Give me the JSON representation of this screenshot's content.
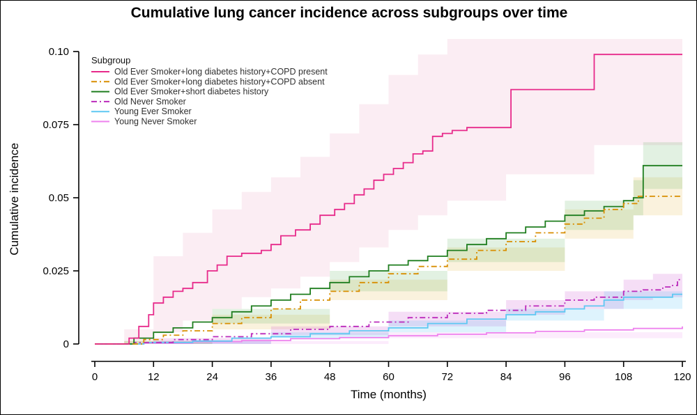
{
  "figure": {
    "background": "#ffffff",
    "border_color": "#000000",
    "axis_color": "#000000",
    "tick_label_color": "#000000",
    "legend_text_color": "#303030"
  },
  "chart_data": {
    "type": "line",
    "subtype": "step-cumulative-incidence",
    "title": "Cumulative lung cancer incidence across subgroups over time",
    "xlabel": "Time (months)",
    "ylabel": "Cumulative incidence",
    "xlim": [
      0,
      120
    ],
    "ylim": [
      0,
      0.1
    ],
    "xticks": [
      0,
      12,
      24,
      36,
      48,
      60,
      72,
      84,
      96,
      108,
      120
    ],
    "yticks": [
      0,
      0.025,
      0.05,
      0.075,
      0.1
    ],
    "ytick_labels": [
      "0",
      "0.025",
      "0.05",
      "0.075",
      "0.10"
    ],
    "grid": false,
    "legend": {
      "title": "Subgroup",
      "position": "top-left"
    },
    "series": [
      {
        "name": "Old Ever Smoker+long diabetes history+COPD present",
        "color": "#e7298a",
        "style": "solid",
        "band_color": "rgba(226,110,160,0.12)",
        "points": [
          [
            0,
            0
          ],
          [
            6,
            0
          ],
          [
            7,
            0.002
          ],
          [
            9,
            0.006
          ],
          [
            11,
            0.01
          ],
          [
            12,
            0.014
          ],
          [
            14,
            0.016
          ],
          [
            16,
            0.018
          ],
          [
            18,
            0.019
          ],
          [
            20,
            0.021
          ],
          [
            23,
            0.025
          ],
          [
            25,
            0.027
          ],
          [
            27,
            0.03
          ],
          [
            30,
            0.031
          ],
          [
            34,
            0.032
          ],
          [
            36,
            0.034
          ],
          [
            38,
            0.037
          ],
          [
            41,
            0.039
          ],
          [
            44,
            0.041
          ],
          [
            46,
            0.044
          ],
          [
            49,
            0.046
          ],
          [
            51,
            0.048
          ],
          [
            53,
            0.051
          ],
          [
            55,
            0.053
          ],
          [
            57,
            0.056
          ],
          [
            59,
            0.058
          ],
          [
            61,
            0.06
          ],
          [
            63,
            0.062
          ],
          [
            65,
            0.065
          ],
          [
            67,
            0.066
          ],
          [
            69,
            0.071
          ],
          [
            71,
            0.072
          ],
          [
            73,
            0.073
          ],
          [
            76,
            0.074
          ],
          [
            85,
            0.087
          ],
          [
            102,
            0.099
          ],
          [
            120,
            0.099
          ]
        ],
        "band": [
          [
            6,
            0,
            0.005
          ],
          [
            12,
            0.004,
            0.03
          ],
          [
            18,
            0.008,
            0.038
          ],
          [
            24,
            0.012,
            0.046
          ],
          [
            30,
            0.016,
            0.052
          ],
          [
            36,
            0.019,
            0.057
          ],
          [
            42,
            0.023,
            0.064
          ],
          [
            48,
            0.028,
            0.072
          ],
          [
            54,
            0.033,
            0.082
          ],
          [
            60,
            0.039,
            0.092
          ],
          [
            66,
            0.044,
            0.099
          ],
          [
            72,
            0.049,
            0.106
          ],
          [
            84,
            0.058,
            0.118
          ],
          [
            102,
            0.068,
            0.13
          ],
          [
            120,
            0.068,
            0.13
          ]
        ]
      },
      {
        "name": "Old Ever Smoker+long diabetes history+COPD absent",
        "color": "#d88e00",
        "style": "dashdot",
        "band_color": "rgba(220,170,30,0.15)",
        "points": [
          [
            0,
            0
          ],
          [
            6,
            0
          ],
          [
            10,
            0.0015
          ],
          [
            14,
            0.003
          ],
          [
            18,
            0.0045
          ],
          [
            24,
            0.007
          ],
          [
            30,
            0.009
          ],
          [
            36,
            0.012
          ],
          [
            42,
            0.015
          ],
          [
            48,
            0.018
          ],
          [
            54,
            0.021
          ],
          [
            60,
            0.024
          ],
          [
            66,
            0.0265
          ],
          [
            72,
            0.029
          ],
          [
            78,
            0.032
          ],
          [
            84,
            0.035
          ],
          [
            90,
            0.038
          ],
          [
            96,
            0.041
          ],
          [
            100,
            0.043
          ],
          [
            104,
            0.046
          ],
          [
            108,
            0.048
          ],
          [
            111,
            0.0505
          ],
          [
            120,
            0.0505
          ]
        ],
        "band": [
          [
            6,
            0,
            0.001
          ],
          [
            24,
            0.005,
            0.01
          ],
          [
            48,
            0.015,
            0.022
          ],
          [
            72,
            0.025,
            0.033
          ],
          [
            96,
            0.036,
            0.046
          ],
          [
            110,
            0.044,
            0.057
          ],
          [
            120,
            0.044,
            0.057
          ]
        ]
      },
      {
        "name": "Old Ever Smoker+short diabetes history",
        "color": "#1e7d1e",
        "style": "solid",
        "band_color": "rgba(60,160,60,0.15)",
        "points": [
          [
            0,
            0
          ],
          [
            5,
            0
          ],
          [
            8,
            0.002
          ],
          [
            12,
            0.004
          ],
          [
            16,
            0.0055
          ],
          [
            20,
            0.0075
          ],
          [
            24,
            0.009
          ],
          [
            28,
            0.011
          ],
          [
            32,
            0.013
          ],
          [
            36,
            0.015
          ],
          [
            40,
            0.017
          ],
          [
            44,
            0.019
          ],
          [
            48,
            0.021
          ],
          [
            52,
            0.023
          ],
          [
            56,
            0.025
          ],
          [
            60,
            0.027
          ],
          [
            64,
            0.0285
          ],
          [
            68,
            0.03
          ],
          [
            72,
            0.032
          ],
          [
            76,
            0.034
          ],
          [
            80,
            0.036
          ],
          [
            84,
            0.038
          ],
          [
            88,
            0.04
          ],
          [
            92,
            0.042
          ],
          [
            96,
            0.044
          ],
          [
            100,
            0.0455
          ],
          [
            104,
            0.047
          ],
          [
            108,
            0.049
          ],
          [
            110,
            0.05
          ],
          [
            112,
            0.061
          ],
          [
            120,
            0.061
          ]
        ],
        "band": [
          [
            6,
            0,
            0.001
          ],
          [
            24,
            0.007,
            0.012
          ],
          [
            48,
            0.018,
            0.025
          ],
          [
            72,
            0.028,
            0.036
          ],
          [
            96,
            0.039,
            0.049
          ],
          [
            110,
            0.044,
            0.056
          ],
          [
            112,
            0.053,
            0.069
          ],
          [
            120,
            0.053,
            0.069
          ]
        ]
      },
      {
        "name": "Old Never Smoker",
        "color": "#bb29bb",
        "style": "dashdot",
        "band_color": "rgba(200,70,205,0.18)",
        "points": [
          [
            0,
            0
          ],
          [
            8,
            0.0005
          ],
          [
            16,
            0.0015
          ],
          [
            24,
            0.0025
          ],
          [
            32,
            0.0035
          ],
          [
            40,
            0.005
          ],
          [
            48,
            0.006
          ],
          [
            56,
            0.0075
          ],
          [
            64,
            0.009
          ],
          [
            72,
            0.0105
          ],
          [
            80,
            0.0115
          ],
          [
            88,
            0.013
          ],
          [
            96,
            0.015
          ],
          [
            102,
            0.016
          ],
          [
            108,
            0.018
          ],
          [
            112,
            0.0185
          ],
          [
            116,
            0.0195
          ],
          [
            118,
            0.02
          ],
          [
            119,
            0.022
          ],
          [
            120,
            0.022
          ]
        ],
        "band": [
          [
            12,
            0,
            0.002
          ],
          [
            36,
            0.003,
            0.006
          ],
          [
            60,
            0.006,
            0.011
          ],
          [
            84,
            0.01,
            0.015
          ],
          [
            96,
            0.012,
            0.018
          ],
          [
            108,
            0.015,
            0.022
          ],
          [
            114,
            0.016,
            0.024
          ],
          [
            120,
            0.017,
            0.028
          ]
        ]
      },
      {
        "name": "Young Ever Smoker",
        "color": "#5ec8f2",
        "style": "solid",
        "band_color": "rgba(90,195,245,0.20)",
        "points": [
          [
            0,
            0
          ],
          [
            10,
            0.0005
          ],
          [
            20,
            0.001
          ],
          [
            28,
            0.002
          ],
          [
            36,
            0.0025
          ],
          [
            44,
            0.0035
          ],
          [
            52,
            0.0045
          ],
          [
            60,
            0.0055
          ],
          [
            68,
            0.007
          ],
          [
            76,
            0.0085
          ],
          [
            84,
            0.01
          ],
          [
            90,
            0.011
          ],
          [
            96,
            0.012
          ],
          [
            100,
            0.013
          ],
          [
            104,
            0.015
          ],
          [
            108,
            0.016
          ],
          [
            114,
            0.016
          ],
          [
            118,
            0.017
          ],
          [
            120,
            0.017
          ]
        ],
        "band": [
          [
            12,
            0,
            0.001
          ],
          [
            36,
            0.002,
            0.004
          ],
          [
            60,
            0.004,
            0.008
          ],
          [
            84,
            0.008,
            0.012
          ],
          [
            104,
            0.012,
            0.018
          ],
          [
            120,
            0.014,
            0.02
          ]
        ]
      },
      {
        "name": "Young Never Smoker",
        "color": "#ee82ee",
        "style": "solid",
        "band_color": "rgba(238,130,235,0.15)",
        "points": [
          [
            0,
            0
          ],
          [
            10,
            0.0003
          ],
          [
            20,
            0.0008
          ],
          [
            30,
            0.0012
          ],
          [
            40,
            0.0018
          ],
          [
            50,
            0.0022
          ],
          [
            60,
            0.0028
          ],
          [
            70,
            0.0033
          ],
          [
            80,
            0.0038
          ],
          [
            90,
            0.0043
          ],
          [
            100,
            0.0048
          ],
          [
            110,
            0.0053
          ],
          [
            120,
            0.006
          ]
        ],
        "band": [
          [
            12,
            0,
            0.001
          ],
          [
            60,
            0.002,
            0.004
          ],
          [
            120,
            0.004,
            0.008
          ]
        ]
      }
    ]
  }
}
